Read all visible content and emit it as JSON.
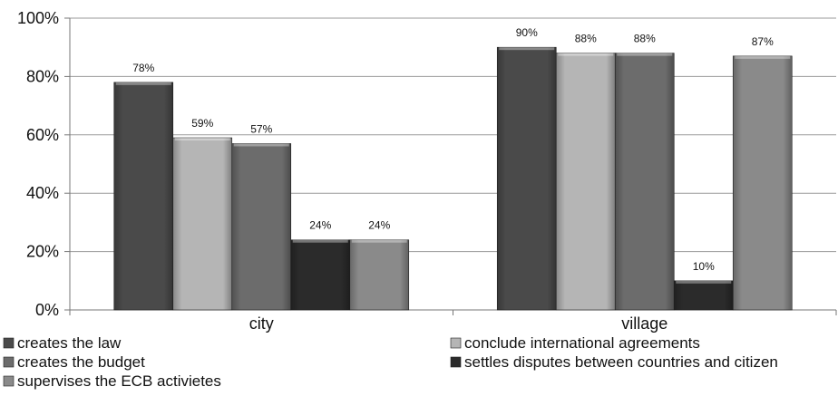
{
  "chart_data": {
    "type": "bar",
    "categories": [
      "city",
      "village"
    ],
    "series": [
      {
        "name": "creates the law",
        "values": [
          78,
          90
        ],
        "color": "#4a4a4a"
      },
      {
        "name": "conclude international agreements",
        "values": [
          59,
          88
        ],
        "color": "#b5b5b5"
      },
      {
        "name": "creates the budget",
        "values": [
          57,
          88
        ],
        "color": "#6c6c6c"
      },
      {
        "name": "settles disputes between countries and citizen",
        "values": [
          24,
          10
        ],
        "color": "#2b2b2b"
      },
      {
        "name": "supervises the ECB activietes",
        "values": [
          24,
          87
        ],
        "color": "#8a8a8a"
      }
    ],
    "data_labels": [
      [
        "78%",
        "90%"
      ],
      [
        "59%",
        "88%"
      ],
      [
        "57%",
        "88%"
      ],
      [
        "24%",
        "10%"
      ],
      [
        "24%",
        "87%"
      ]
    ],
    "yticks": [
      "0%",
      "20%",
      "40%",
      "60%",
      "80%",
      "100%"
    ],
    "ylim": [
      0,
      100
    ],
    "grid": true,
    "legend_position": "bottom"
  }
}
